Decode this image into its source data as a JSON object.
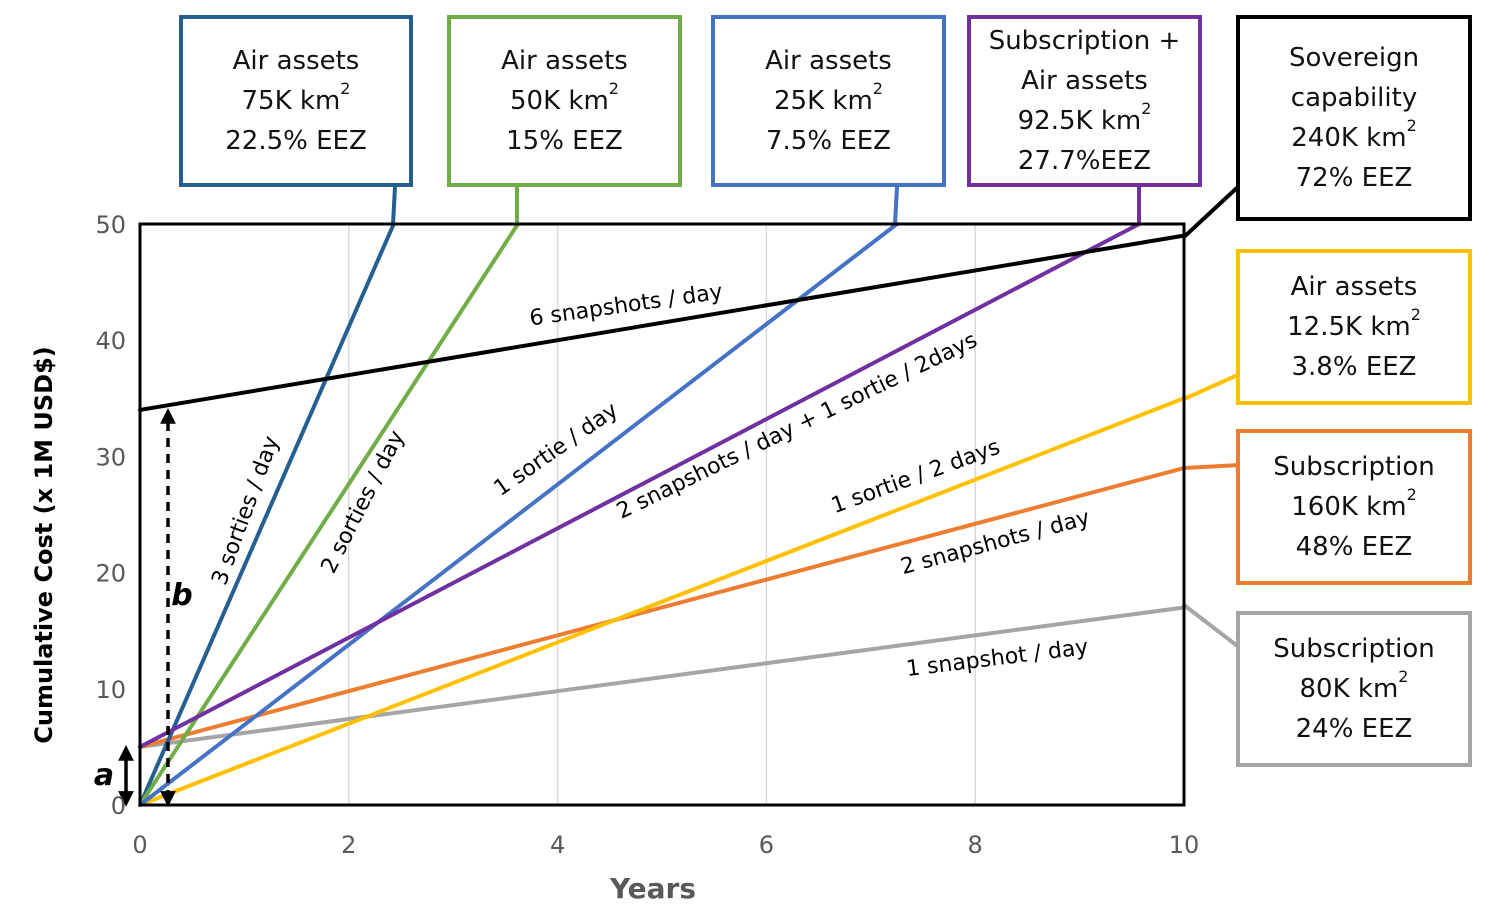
{
  "chart_data": {
    "type": "line",
    "xlabel": "Years",
    "ylabel": "Cumulative Cost (x 1M USD$)",
    "xlim": [
      0,
      10
    ],
    "ylim": [
      0,
      50
    ],
    "xticks": [
      "0",
      "2",
      "4",
      "6",
      "8",
      "10"
    ],
    "yticks": [
      "0",
      "10",
      "20",
      "30",
      "40",
      "50"
    ],
    "grid": "vertical",
    "series": [
      {
        "color": "#255E91",
        "x": [
          0,
          2.43
        ],
        "y": [
          0,
          50
        ],
        "line_label": "3 sorties / day",
        "box": {
          "title": "Air assets",
          "area": "75K km",
          "sup": "2",
          "eez": "22.5% EEZ"
        }
      },
      {
        "color": "#70AD47",
        "x": [
          0,
          3.62
        ],
        "y": [
          0,
          50
        ],
        "line_label": "2 sorties / day",
        "box": {
          "title": "Air assets",
          "area": "50K km",
          "sup": "2",
          "eez": "15% EEZ"
        }
      },
      {
        "color": "#4472C4",
        "x": [
          0,
          7.25
        ],
        "y": [
          0,
          50
        ],
        "line_label": "1 sortie / day",
        "box": {
          "title": "Air assets",
          "area": "25K km",
          "sup": "2",
          "eez": "7.5% EEZ"
        }
      },
      {
        "color": "#7030A0",
        "x": [
          0,
          9.57
        ],
        "y": [
          5,
          50
        ],
        "line_label": "2 snapshots / day + 1 sortie / 2days",
        "box": {
          "title": "Subscription +",
          "title2": "Air assets",
          "area": "92.5K km",
          "sup": "2",
          "eez": "27.7%EEZ"
        }
      },
      {
        "color": "#000000",
        "x": [
          0,
          10
        ],
        "y": [
          34,
          49
        ],
        "line_label": "6 snapshots / day",
        "box": {
          "title": "Sovereign",
          "title2": "capability",
          "area": "240K km",
          "sup": "2",
          "eez": "72% EEZ"
        }
      },
      {
        "color": "#FFC000",
        "x": [
          0,
          10
        ],
        "y": [
          0,
          35
        ],
        "line_label": "1 sortie / 2 days",
        "box": {
          "title": "Air assets",
          "area": "12.5K km",
          "sup": "2",
          "eez": "3.8% EEZ"
        }
      },
      {
        "color": "#ED7D31",
        "x": [
          0,
          10
        ],
        "y": [
          5,
          29
        ],
        "line_label": "2 snapshots / day",
        "box": {
          "title": "Subscription",
          "area": "160K km",
          "sup": "2",
          "eez": "48% EEZ"
        }
      },
      {
        "color": "#A5A5A5",
        "x": [
          0,
          10
        ],
        "y": [
          5,
          17
        ],
        "line_label": "1 snapshot / day",
        "box": {
          "title": "Subscription",
          "area": "80K km",
          "sup": "2",
          "eez": "24% EEZ"
        }
      }
    ],
    "annotations": [
      {
        "label": "a",
        "from": 0,
        "to": 5,
        "x": -0.15
      },
      {
        "label": "b",
        "from": 0,
        "to": 34,
        "x": 0.27
      }
    ]
  }
}
